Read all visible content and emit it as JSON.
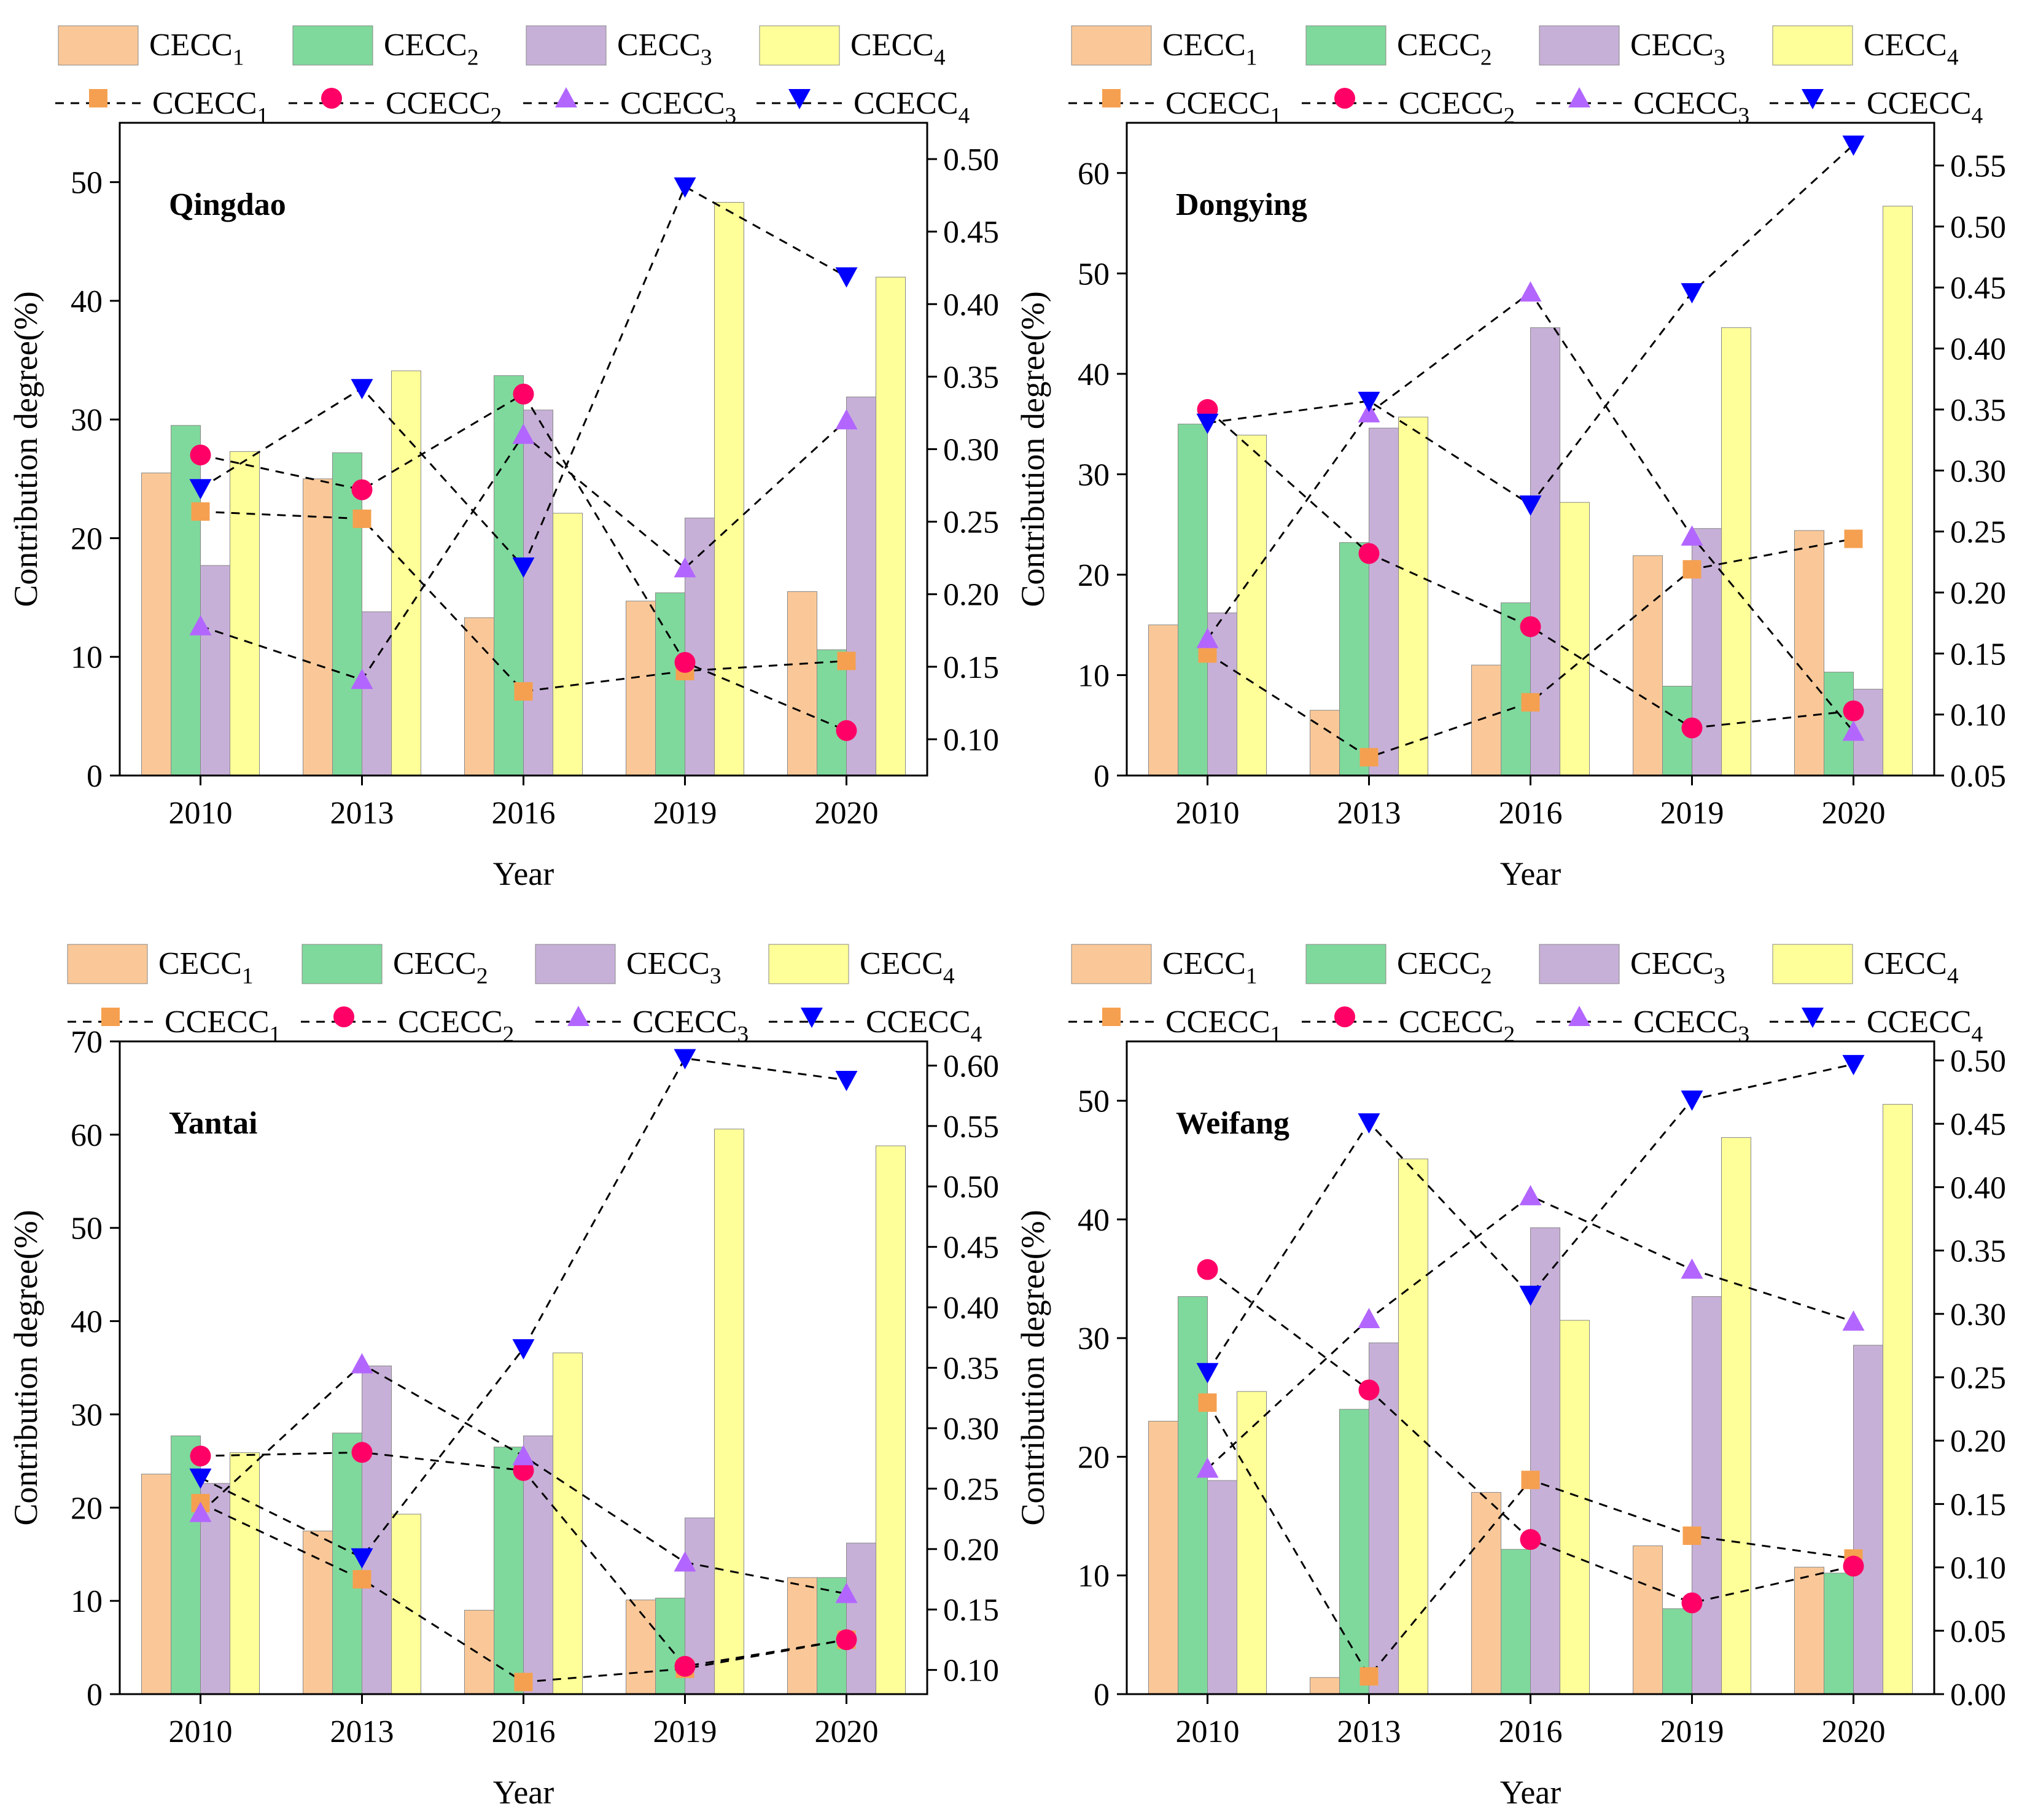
{
  "figure": {
    "colors": {
      "cecc1": "#FAC898",
      "cecc2": "#7FD99C",
      "cecc3": "#C7B0D8",
      "cecc4": "#FFFF99",
      "ccecc1": "#F5A050",
      "ccecc2": "#FF0066",
      "ccecc3": "#B266FF",
      "ccecc4": "#0000FF",
      "axis": "#000000",
      "bar_edge": "#888888"
    },
    "legend": {
      "bars": [
        {
          "base": "CECC",
          "sub": "1"
        },
        {
          "base": "CECC",
          "sub": "2"
        },
        {
          "base": "CECC",
          "sub": "3"
        },
        {
          "base": "CECC",
          "sub": "4"
        }
      ],
      "lines": [
        {
          "base": "CCECC",
          "sub": "1"
        },
        {
          "base": "CCECC",
          "sub": "2"
        },
        {
          "base": "CCECC",
          "sub": "3"
        },
        {
          "base": "CCECC",
          "sub": "4"
        }
      ]
    }
  },
  "chart_data": [
    {
      "type": "bar",
      "title": "Qingdao",
      "xlabel": "Year",
      "ylabel": "Contribution degree(%)",
      "categories": [
        "2010",
        "2013",
        "2016",
        "2019",
        "2020"
      ],
      "ylim": [
        0,
        55
      ],
      "yticks": [
        0,
        10,
        20,
        30,
        40,
        50
      ],
      "y2lim": [
        0.075,
        0.525
      ],
      "y2ticks": [
        0.1,
        0.15,
        0.2,
        0.25,
        0.3,
        0.35,
        0.4,
        0.45,
        0.5
      ],
      "bar_series": [
        {
          "name": "CECC1",
          "values": [
            25.5,
            25.0,
            13.3,
            14.7,
            15.5
          ]
        },
        {
          "name": "CECC2",
          "values": [
            29.5,
            27.2,
            33.7,
            15.4,
            10.6
          ]
        },
        {
          "name": "CECC3",
          "values": [
            17.7,
            13.8,
            30.8,
            21.7,
            31.9
          ]
        },
        {
          "name": "CECC4",
          "values": [
            27.3,
            34.1,
            22.1,
            48.3,
            42.0
          ]
        }
      ],
      "line_series": [
        {
          "name": "CCECC1",
          "marker": "square",
          "values": [
            0.257,
            0.252,
            0.133,
            0.147,
            0.154
          ]
        },
        {
          "name": "CCECC2",
          "marker": "circle",
          "values": [
            0.296,
            0.272,
            0.338,
            0.153,
            0.106
          ]
        },
        {
          "name": "CCECC3",
          "marker": "triangle-up",
          "values": [
            0.178,
            0.141,
            0.31,
            0.218,
            0.32
          ]
        },
        {
          "name": "CCECC4",
          "marker": "triangle-down",
          "values": [
            0.273,
            0.342,
            0.219,
            0.481,
            0.419
          ]
        }
      ]
    },
    {
      "type": "bar",
      "title": "Dongying",
      "xlabel": "Year",
      "ylabel": "Contribution degree(%)",
      "categories": [
        "2010",
        "2013",
        "2016",
        "2019",
        "2020"
      ],
      "ylim": [
        0,
        65
      ],
      "yticks": [
        0,
        10,
        20,
        30,
        40,
        50,
        60
      ],
      "y2lim": [
        0.05,
        0.585
      ],
      "y2ticks": [
        0.05,
        0.1,
        0.15,
        0.2,
        0.25,
        0.3,
        0.35,
        0.4,
        0.45,
        0.5,
        0.55
      ],
      "bar_series": [
        {
          "name": "CECC1",
          "values": [
            15.0,
            6.5,
            11.0,
            21.9,
            24.4
          ]
        },
        {
          "name": "CECC2",
          "values": [
            35.0,
            23.2,
            17.2,
            8.9,
            10.3
          ]
        },
        {
          "name": "CECC3",
          "values": [
            16.2,
            34.6,
            44.6,
            24.6,
            8.6
          ]
        },
        {
          "name": "CECC4",
          "values": [
            33.9,
            35.7,
            27.2,
            44.6,
            56.7
          ]
        }
      ],
      "line_series": [
        {
          "name": "CCECC1",
          "marker": "square",
          "values": [
            0.15,
            0.065,
            0.11,
            0.219,
            0.244
          ]
        },
        {
          "name": "CCECC2",
          "marker": "circle",
          "values": [
            0.35,
            0.232,
            0.172,
            0.089,
            0.103
          ]
        },
        {
          "name": "CCECC3",
          "marker": "triangle-up",
          "values": [
            0.162,
            0.347,
            0.446,
            0.246,
            0.086
          ]
        },
        {
          "name": "CCECC4",
          "marker": "triangle-down",
          "values": [
            0.339,
            0.357,
            0.272,
            0.446,
            0.567
          ]
        }
      ]
    },
    {
      "type": "bar",
      "title": "Yantai",
      "xlabel": "Year",
      "ylabel": "Contribution degree(%)",
      "categories": [
        "2010",
        "2013",
        "2016",
        "2019",
        "2020"
      ],
      "ylim": [
        0,
        70
      ],
      "yticks": [
        0,
        10,
        20,
        30,
        40,
        50,
        60,
        70
      ],
      "y2lim": [
        0.08,
        0.62
      ],
      "y2ticks": [
        0.1,
        0.15,
        0.2,
        0.25,
        0.3,
        0.35,
        0.4,
        0.45,
        0.5,
        0.55,
        0.6
      ],
      "bar_series": [
        {
          "name": "CECC1",
          "values": [
            23.6,
            17.5,
            9.0,
            10.1,
            12.5
          ]
        },
        {
          "name": "CECC2",
          "values": [
            27.7,
            28.0,
            26.5,
            10.3,
            12.5
          ]
        },
        {
          "name": "CECC3",
          "values": [
            22.6,
            35.2,
            27.7,
            18.9,
            16.2
          ]
        },
        {
          "name": "CECC4",
          "values": [
            25.9,
            19.3,
            36.6,
            60.6,
            58.8
          ]
        }
      ],
      "line_series": [
        {
          "name": "CCECC1",
          "marker": "square",
          "values": [
            0.238,
            0.175,
            0.09,
            0.101,
            0.125
          ]
        },
        {
          "name": "CCECC2",
          "marker": "circle",
          "values": [
            0.277,
            0.28,
            0.265,
            0.103,
            0.125
          ]
        },
        {
          "name": "CCECC3",
          "marker": "triangle-up",
          "values": [
            0.23,
            0.353,
            0.277,
            0.189,
            0.163
          ]
        },
        {
          "name": "CCECC4",
          "marker": "triangle-down",
          "values": [
            0.259,
            0.193,
            0.366,
            0.606,
            0.588
          ]
        }
      ]
    },
    {
      "type": "bar",
      "title": "Weifang",
      "xlabel": "Year",
      "ylabel": "Contribution degree(%)",
      "categories": [
        "2010",
        "2013",
        "2016",
        "2019",
        "2020"
      ],
      "ylim": [
        0,
        55
      ],
      "yticks": [
        0,
        10,
        20,
        30,
        40,
        50
      ],
      "y2lim": [
        0,
        0.515
      ],
      "y2ticks": [
        0.0,
        0.05,
        0.1,
        0.15,
        0.2,
        0.25,
        0.3,
        0.35,
        0.4,
        0.45,
        0.5
      ],
      "bar_series": [
        {
          "name": "CECC1",
          "values": [
            23.0,
            1.4,
            17.0,
            12.5,
            10.7
          ]
        },
        {
          "name": "CECC2",
          "values": [
            33.5,
            24.0,
            12.2,
            7.2,
            10.2
          ]
        },
        {
          "name": "CECC3",
          "values": [
            18.0,
            29.6,
            39.3,
            33.5,
            29.4
          ]
        },
        {
          "name": "CECC4",
          "values": [
            25.5,
            45.1,
            31.5,
            46.9,
            49.7
          ]
        }
      ],
      "line_series": [
        {
          "name": "CCECC1",
          "marker": "square",
          "values": [
            0.23,
            0.014,
            0.169,
            0.125,
            0.107
          ]
        },
        {
          "name": "CCECC2",
          "marker": "circle",
          "values": [
            0.335,
            0.24,
            0.122,
            0.072,
            0.101
          ]
        },
        {
          "name": "CCECC3",
          "marker": "triangle-up",
          "values": [
            0.178,
            0.296,
            0.393,
            0.335,
            0.294
          ]
        },
        {
          "name": "CCECC4",
          "marker": "triangle-down",
          "values": [
            0.254,
            0.451,
            0.315,
            0.469,
            0.497
          ]
        }
      ]
    }
  ]
}
